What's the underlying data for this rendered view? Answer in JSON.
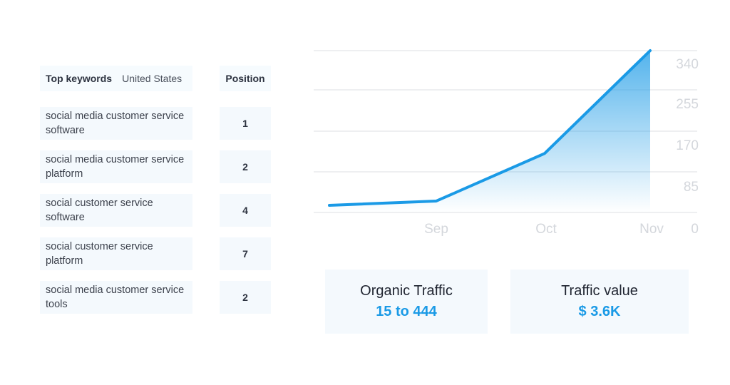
{
  "keywords_table": {
    "title": "Top keywords",
    "location": "United States",
    "position_header": "Position",
    "rows": [
      {
        "keyword": "social media customer service software",
        "position": "1"
      },
      {
        "keyword": "social media customer service platform",
        "position": "2"
      },
      {
        "keyword": "social customer service software",
        "position": "4"
      },
      {
        "keyword": "social customer service platform",
        "position": "7"
      },
      {
        "keyword": "social media customer service tools",
        "position": "2"
      }
    ]
  },
  "chart_data": {
    "type": "area",
    "title": "",
    "xlabel": "",
    "ylabel": "",
    "x_tick_labels": [
      "Sep",
      "Oct",
      "Nov"
    ],
    "y_tick_labels": [
      "0",
      "85",
      "170",
      "255",
      "340"
    ],
    "ylim": [
      0,
      340
    ],
    "grid": true,
    "line_color": "#1a9ae6",
    "series": [
      {
        "x": [
          "",
          "Sep",
          "Oct",
          "Nov"
        ],
        "values": [
          15,
          24,
          124,
          444
        ]
      }
    ]
  },
  "stats": {
    "organic_traffic_label": "Organic Traffic",
    "organic_traffic_value": "15 to 444",
    "traffic_value_label": "Traffic value",
    "traffic_value_value": "$ 3.6K"
  },
  "colors": {
    "accent": "#1a9ae6",
    "card_bg": "#f4f9fd",
    "grid": "#dcdfe3",
    "tick": "#d4d7dc"
  }
}
